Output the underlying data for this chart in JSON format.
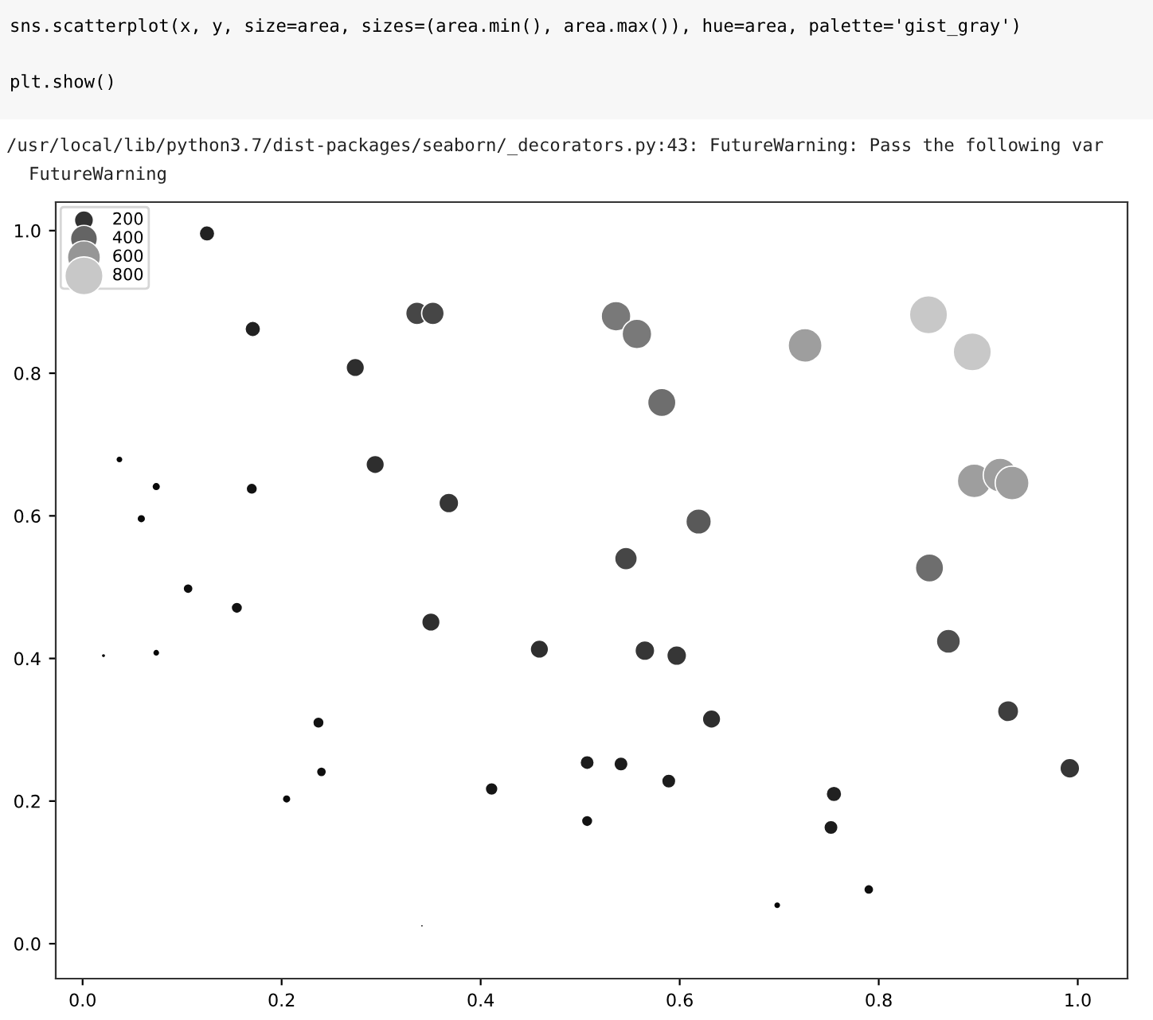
{
  "chart_data": {
    "type": "bubble",
    "annotations": [
      "sns.scatterplot(x, y, size=area, sizes=(area.min(), area.max()), hue=area, palette='gist_gray')",
      "plt.show()",
      "/usr/local/lib/python3.7/dist-packages/seaborn/_decorators.py:43: FutureWarning: Pass the following var",
      "FutureWarning"
    ],
    "x": [
      0.125,
      0.171,
      0.274,
      0.336,
      0.352,
      0.294,
      0.368,
      0.17,
      0.074,
      0.037,
      0.059,
      0.106,
      0.155,
      0.074,
      0.021,
      0.35,
      0.237,
      0.24,
      0.205,
      0.411,
      0.507,
      0.507,
      0.341,
      0.459,
      0.541,
      0.589,
      0.565,
      0.597,
      0.632,
      0.755,
      0.752,
      0.79,
      0.698,
      0.87,
      0.93,
      0.992,
      0.536,
      0.557,
      0.726,
      0.85,
      0.894,
      0.582,
      0.619,
      0.546,
      0.851,
      0.896,
      0.922,
      0.934
    ],
    "values": [
      0.996,
      0.862,
      0.808,
      0.884,
      0.884,
      0.672,
      0.618,
      0.638,
      0.641,
      0.679,
      0.596,
      0.498,
      0.471,
      0.408,
      0.404,
      0.451,
      0.31,
      0.241,
      0.203,
      0.217,
      0.254,
      0.172,
      0.025,
      0.413,
      0.252,
      0.228,
      0.411,
      0.404,
      0.315,
      0.21,
      0.163,
      0.076,
      0.054,
      0.424,
      0.326,
      0.246,
      0.88,
      0.855,
      0.839,
      0.882,
      0.83,
      0.759,
      0.592,
      0.54,
      0.527,
      0.649,
      0.657,
      0.646
    ],
    "sizes": [
      133,
      133,
      185,
      281,
      281,
      185,
      215,
      70,
      40,
      27,
      40,
      54,
      70,
      27,
      10,
      185,
      70,
      54,
      40,
      89,
      110,
      70,
      4,
      185,
      110,
      110,
      215,
      215,
      185,
      133,
      110,
      54,
      27,
      317,
      247,
      215,
      484,
      484,
      632,
      800,
      800,
      439,
      356,
      281,
      439,
      632,
      632,
      632
    ],
    "colors": [
      "#212121",
      "#212121",
      "#2e2e2e",
      "#464646",
      "#464646",
      "#2e2e2e",
      "#363636",
      "#121212",
      "#0a0a0a",
      "#070707",
      "#0a0a0a",
      "#0e0e0e",
      "#121212",
      "#070707",
      "#030303",
      "#2e2e2e",
      "#121212",
      "#0e0e0e",
      "#0a0a0a",
      "#161616",
      "#1c1c1c",
      "#121212",
      "#010101",
      "#2e2e2e",
      "#1c1c1c",
      "#1c1c1c",
      "#363636",
      "#363636",
      "#2e2e2e",
      "#212121",
      "#1c1c1c",
      "#0e0e0e",
      "#070707",
      "#4f4f4f",
      "#3e3e3e",
      "#363636",
      "#797979",
      "#797979",
      "#9e9e9e",
      "#c8c8c8",
      "#c8c8c8",
      "#6e6e6e",
      "#595959",
      "#464646",
      "#6e6e6e",
      "#9e9e9e",
      "#9e9e9e",
      "#9e9e9e"
    ],
    "size_legend": [
      200,
      400,
      600,
      800
    ],
    "xlim": [
      -0.027,
      1.05
    ],
    "ylim": [
      -0.049,
      1.04
    ],
    "xticks": [
      {
        "value": 0,
        "label": "0.0"
      },
      0.2,
      0.4,
      0.6,
      0.8,
      {
        "value": 1,
        "label": "1.0"
      }
    ],
    "yticks": [
      {
        "value": 0,
        "label": "0.0"
      },
      0.2,
      0.4,
      0.6,
      0.8,
      {
        "value": 1,
        "label": "1.0"
      }
    ],
    "grid": false
  }
}
